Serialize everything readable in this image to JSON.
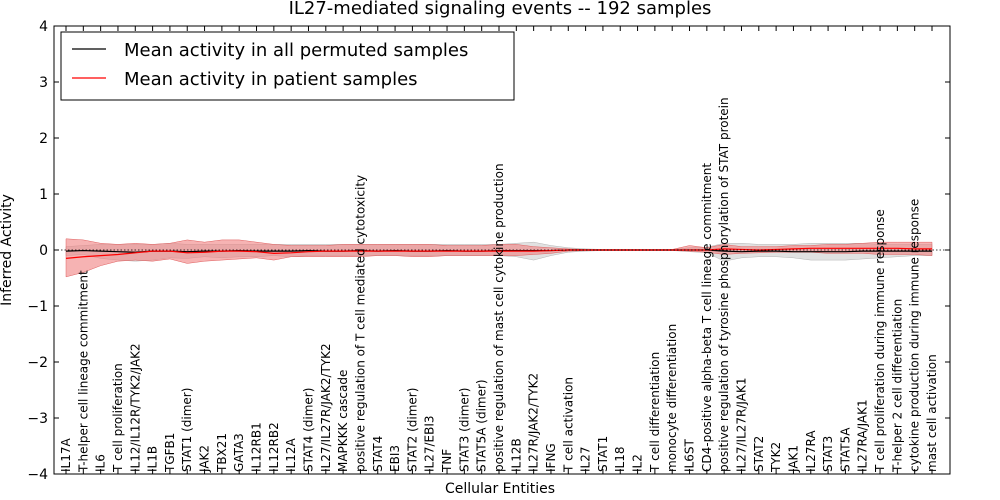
{
  "chart_data": {
    "type": "line",
    "title": "IL27-mediated signaling events -- 192 samples",
    "xlabel": "Cellular Entities",
    "ylabel": "Inferred Activity",
    "ylim": [
      -4,
      4
    ],
    "yticks": [
      -4,
      -3,
      -2,
      -1,
      0,
      1,
      2,
      3,
      4
    ],
    "ytick_labels": [
      "−4",
      "−3",
      "−2",
      "−1",
      "0",
      "1",
      "2",
      "3",
      "4"
    ],
    "legend_position": "top-left",
    "categories": [
      "IL17A",
      "T-helper cell lineage commitment",
      "IL6",
      "T cell proliferation",
      "IL12/IL12R/TYK2/JAK2",
      "IL1B",
      "TGFB1",
      "STAT1 (dimer)",
      "JAK2",
      "TBX21",
      "GATA3",
      "IL12RB1",
      "IL12RB2",
      "IL12A",
      "STAT4 (dimer)",
      "IL27/IL27R/JAK2/TYK2",
      "MAPKKK cascade",
      "positive regulation of T cell mediated cytotoxicity",
      "STAT4",
      "EBI3",
      "STAT2 (dimer)",
      "IL27/EBI3",
      "TNF",
      "STAT3 (dimer)",
      "STAT5A (dimer)",
      "positive regulation of mast cell cytokine production",
      "IL12B",
      "IL27R/JAK2/TYK2",
      "IFNG",
      "T cell activation",
      "IL27",
      "STAT1",
      "IL18",
      "IL2",
      "T cell differentiation",
      "monocyte differentiation",
      "IL6ST",
      "CD4-positive alpha-beta T cell lineage commitment",
      "positive regulation of tyrosine phosphorylation of STAT protein",
      "IL27/IL27R/JAK1",
      "STAT2",
      "TYK2",
      "JAK1",
      "IL27RA",
      "STAT3",
      "STAT5A",
      "IL27RA/JAK1",
      "T cell proliferation during immune response",
      "T-helper 2 cell differentiation",
      "cytokine production during immune response",
      "mast cell activation"
    ],
    "series": [
      {
        "name": "Mean activity in all permuted samples",
        "color": "#000000",
        "values": [
          -0.02,
          -0.01,
          -0.02,
          -0.03,
          -0.04,
          -0.02,
          -0.02,
          -0.03,
          -0.02,
          -0.02,
          -0.01,
          -0.02,
          -0.02,
          -0.02,
          -0.01,
          -0.02,
          -0.02,
          -0.01,
          -0.02,
          -0.01,
          -0.02,
          -0.02,
          -0.01,
          -0.02,
          -0.02,
          -0.01,
          -0.01,
          -0.01,
          -0.01,
          0.0,
          0.0,
          0.0,
          0.0,
          0.0,
          0.0,
          0.0,
          0.0,
          0.0,
          -0.02,
          -0.03,
          -0.02,
          -0.02,
          -0.03,
          -0.03,
          -0.03,
          -0.03,
          -0.02,
          -0.02,
          -0.02,
          -0.02,
          -0.02
        ],
        "band_lower": [
          -0.1,
          -0.08,
          -0.15,
          -0.18,
          -0.2,
          -0.18,
          -0.14,
          -0.15,
          -0.12,
          -0.14,
          -0.12,
          -0.12,
          -0.1,
          -0.12,
          -0.1,
          -0.1,
          -0.1,
          -0.1,
          -0.1,
          -0.1,
          -0.1,
          -0.1,
          -0.1,
          -0.1,
          -0.1,
          -0.1,
          -0.12,
          -0.18,
          -0.1,
          -0.04,
          -0.02,
          -0.01,
          -0.01,
          -0.01,
          -0.01,
          -0.01,
          -0.03,
          -0.05,
          -0.2,
          -0.14,
          -0.12,
          -0.12,
          -0.14,
          -0.18,
          -0.18,
          -0.18,
          -0.16,
          -0.14,
          -0.12,
          -0.1,
          -0.1
        ],
        "band_upper": [
          0.06,
          0.08,
          0.1,
          0.1,
          0.1,
          0.1,
          0.12,
          0.1,
          0.1,
          0.1,
          0.1,
          0.1,
          0.1,
          0.1,
          0.1,
          0.1,
          0.1,
          0.1,
          0.1,
          0.1,
          0.1,
          0.1,
          0.1,
          0.1,
          0.1,
          0.1,
          0.12,
          0.14,
          0.08,
          0.04,
          0.02,
          0.01,
          0.01,
          0.01,
          0.01,
          0.01,
          0.04,
          0.05,
          0.12,
          0.12,
          0.1,
          0.1,
          0.1,
          0.12,
          0.12,
          0.12,
          0.12,
          0.1,
          0.1,
          0.1,
          0.1
        ]
      },
      {
        "name": "Mean activity in patient samples",
        "color": "#ff0000",
        "values": [
          -0.15,
          -0.12,
          -0.1,
          -0.08,
          -0.05,
          -0.02,
          -0.02,
          -0.05,
          -0.04,
          -0.02,
          -0.02,
          -0.03,
          -0.06,
          -0.05,
          -0.03,
          -0.02,
          -0.02,
          -0.02,
          -0.02,
          -0.02,
          -0.02,
          -0.02,
          -0.02,
          -0.02,
          -0.02,
          -0.02,
          -0.02,
          -0.02,
          -0.01,
          0.0,
          0.0,
          0.0,
          0.0,
          0.0,
          0.0,
          0.0,
          0.0,
          0.0,
          0.02,
          0.01,
          0.0,
          0.01,
          0.02,
          0.03,
          0.03,
          0.03,
          0.03,
          0.03,
          0.03,
          0.02,
          0.02
        ],
        "band_lower": [
          -0.48,
          -0.4,
          -0.28,
          -0.2,
          -0.18,
          -0.2,
          -0.16,
          -0.24,
          -0.2,
          -0.18,
          -0.16,
          -0.14,
          -0.18,
          -0.12,
          -0.12,
          -0.12,
          -0.12,
          -0.12,
          -0.1,
          -0.1,
          -0.12,
          -0.12,
          -0.1,
          -0.1,
          -0.1,
          -0.1,
          -0.1,
          -0.08,
          -0.06,
          -0.02,
          -0.01,
          -0.01,
          -0.01,
          -0.01,
          -0.01,
          -0.01,
          -0.02,
          -0.04,
          -0.08,
          -0.06,
          -0.05,
          -0.04,
          -0.04,
          -0.04,
          -0.06,
          -0.06,
          -0.06,
          -0.08,
          -0.08,
          -0.08,
          -0.1
        ],
        "band_upper": [
          0.2,
          0.18,
          0.12,
          0.1,
          0.12,
          0.1,
          0.12,
          0.18,
          0.14,
          0.18,
          0.18,
          0.14,
          0.1,
          0.08,
          0.08,
          0.08,
          0.1,
          0.1,
          0.1,
          0.1,
          0.1,
          0.1,
          0.08,
          0.08,
          0.08,
          0.1,
          0.1,
          0.06,
          0.04,
          0.02,
          0.01,
          0.01,
          0.01,
          0.01,
          0.01,
          0.01,
          0.08,
          0.04,
          0.1,
          0.06,
          0.06,
          0.06,
          0.08,
          0.08,
          0.1,
          0.1,
          0.12,
          0.14,
          0.14,
          0.14,
          0.14
        ]
      }
    ]
  }
}
